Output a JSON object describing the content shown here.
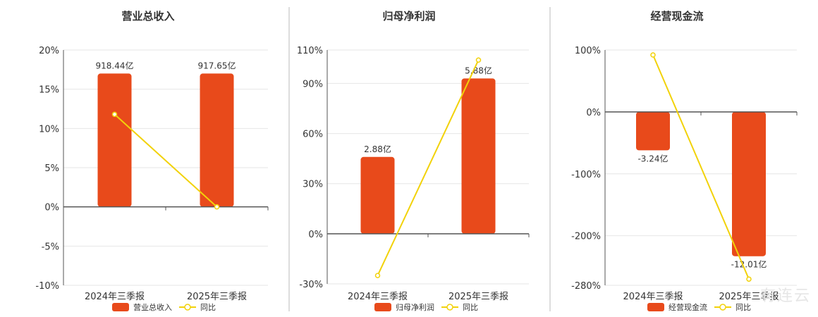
{
  "colors": {
    "bar": "#E84A1B",
    "line": "#F2D20A",
    "axis": "#555555",
    "grid": "#E6E6E6",
    "divider": "#BBBBBB"
  },
  "legend_line_label": "同比",
  "watermark": "有连云",
  "chart_data": [
    {
      "type": "bar",
      "title": "营业总收入",
      "categories": [
        "2024年三季报",
        "2025年三季报"
      ],
      "series": [
        {
          "name": "营业总收入",
          "kind": "bar",
          "values": [
            17.0,
            17.0
          ],
          "labels": [
            "918.44亿",
            "917.65亿"
          ]
        },
        {
          "name": "同比",
          "kind": "line",
          "values": [
            11.8,
            0.0
          ]
        }
      ],
      "yticks": [
        20,
        15,
        10,
        5,
        0,
        -5,
        -10
      ],
      "ylim": [
        -10,
        20
      ],
      "tick_format": "{v}%",
      "grid": true,
      "legend": "bottom"
    },
    {
      "type": "bar",
      "title": "归母净利润",
      "categories": [
        "2024年三季报",
        "2025年三季报"
      ],
      "series": [
        {
          "name": "归母净利润",
          "kind": "bar",
          "values": [
            46,
            93
          ],
          "labels": [
            "2.88亿",
            "5.88亿"
          ]
        },
        {
          "name": "同比",
          "kind": "line",
          "values": [
            -25,
            104
          ]
        }
      ],
      "yticks": [
        110,
        90,
        60,
        30,
        0,
        -30
      ],
      "ylim": [
        -30,
        110
      ],
      "tick_format": "{v}%",
      "grid": true,
      "legend": "bottom"
    },
    {
      "type": "bar",
      "title": "经营现金流",
      "categories": [
        "2024年三季报",
        "2025年三季报"
      ],
      "series": [
        {
          "name": "经营现金流",
          "kind": "bar",
          "values": [
            -62,
            -233
          ],
          "labels": [
            "-3.24亿",
            "-12.01亿"
          ]
        },
        {
          "name": "同比",
          "kind": "line",
          "values": [
            92,
            -270
          ]
        }
      ],
      "yticks": [
        100,
        0,
        -100,
        -200,
        -280
      ],
      "ylim": [
        -280,
        100
      ],
      "tick_format": "{v}%",
      "grid": true,
      "legend": "bottom"
    }
  ]
}
